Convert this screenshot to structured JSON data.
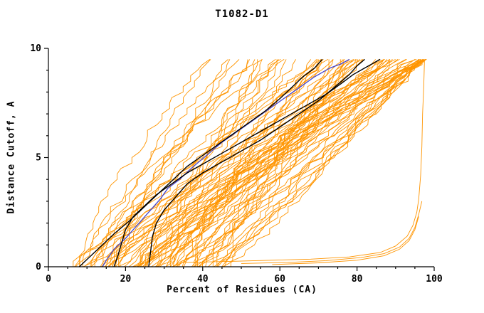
{
  "chart_data": {
    "type": "line",
    "title": "T1082-D1",
    "xlabel": "Percent of Residues (CA)",
    "ylabel": "Distance Cutoff, A",
    "xlim": [
      0,
      100
    ],
    "ylim": [
      0,
      10
    ],
    "x_ticks": [
      0,
      20,
      40,
      60,
      80,
      100
    ],
    "y_ticks": [
      0,
      5,
      10
    ],
    "x_minor_step": 5,
    "y_minor_step": 1,
    "grid": false,
    "legend": "none",
    "axis_color": "#000000",
    "background_color": "#ffffff",
    "ensemble": {
      "description": "cloud of orange model GDT curves (percent of CA residues under each distance cutoff)",
      "color": "#FF9500",
      "count": 85,
      "seed": 20231082,
      "y_max": 9.5,
      "y_step": 0.25,
      "x_start_range": [
        5,
        47
      ],
      "x_end_max": 97
    },
    "series": [
      {
        "name": "outlier-orange-1",
        "color": "#FF9500",
        "width": 0.9,
        "points": [
          [
            35,
            0.2
          ],
          [
            48,
            0.25
          ],
          [
            58,
            0.3
          ],
          [
            68,
            0.35
          ],
          [
            78,
            0.45
          ],
          [
            86,
            0.65
          ],
          [
            90,
            0.95
          ],
          [
            93,
            1.4
          ],
          [
            94.5,
            1.9
          ],
          [
            95.5,
            2.5
          ],
          [
            96,
            3.1
          ],
          [
            96.5,
            4.2
          ],
          [
            96.8,
            5.5
          ],
          [
            97,
            7.0
          ],
          [
            97.3,
            8.3
          ],
          [
            97.5,
            9.5
          ]
        ]
      },
      {
        "name": "outlier-orange-2",
        "color": "#FF9500",
        "width": 0.9,
        "points": [
          [
            50,
            0.15
          ],
          [
            62,
            0.2
          ],
          [
            72,
            0.28
          ],
          [
            81,
            0.42
          ],
          [
            87,
            0.6
          ],
          [
            91,
            0.9
          ],
          [
            93.5,
            1.3
          ],
          [
            95,
            1.8
          ],
          [
            96,
            2.4
          ],
          [
            96.8,
            3.0
          ]
        ]
      },
      {
        "name": "outlier-orange-3",
        "color": "#FF9500",
        "width": 0.9,
        "points": [
          [
            58,
            0.1
          ],
          [
            70,
            0.18
          ],
          [
            80,
            0.3
          ],
          [
            87,
            0.5
          ],
          [
            91,
            0.8
          ],
          [
            93.5,
            1.2
          ],
          [
            95,
            1.7
          ],
          [
            96,
            2.3
          ]
        ]
      },
      {
        "name": "model-blue",
        "color": "#4444CC",
        "width": 1.3,
        "points": [
          [
            14,
            0
          ],
          [
            15,
            0.3
          ],
          [
            17,
            0.8
          ],
          [
            20,
            1.3
          ],
          [
            23,
            1.9
          ],
          [
            26,
            2.5
          ],
          [
            29,
            3.1
          ],
          [
            31,
            3.6
          ],
          [
            34,
            4.0
          ],
          [
            37,
            4.5
          ],
          [
            41,
            5.1
          ],
          [
            45,
            5.7
          ],
          [
            49,
            6.2
          ],
          [
            53,
            6.7
          ],
          [
            57,
            7.2
          ],
          [
            61,
            7.7
          ],
          [
            65,
            8.2
          ],
          [
            69,
            8.7
          ],
          [
            73,
            9.1
          ],
          [
            76,
            9.3
          ],
          [
            78,
            9.5
          ]
        ]
      },
      {
        "name": "model-black-1",
        "color": "#000000",
        "width": 1.4,
        "points": [
          [
            8,
            0
          ],
          [
            11,
            0.5
          ],
          [
            14,
            1.0
          ],
          [
            17,
            1.5
          ],
          [
            21,
            2.1
          ],
          [
            24,
            2.6
          ],
          [
            27,
            3.1
          ],
          [
            30,
            3.6
          ],
          [
            33,
            4.1
          ],
          [
            36,
            4.6
          ],
          [
            40,
            5.1
          ],
          [
            44,
            5.6
          ],
          [
            48,
            6.1
          ],
          [
            52,
            6.6
          ],
          [
            56,
            7.1
          ],
          [
            60,
            7.7
          ],
          [
            63,
            8.2
          ],
          [
            66,
            8.7
          ],
          [
            69,
            9.1
          ],
          [
            71,
            9.5
          ]
        ]
      },
      {
        "name": "model-black-2",
        "color": "#000000",
        "width": 1.4,
        "points": [
          [
            17,
            0
          ],
          [
            18,
            0.5
          ],
          [
            19,
            1.1
          ],
          [
            20,
            1.7
          ],
          [
            22,
            2.3
          ],
          [
            25,
            2.8
          ],
          [
            28,
            3.3
          ],
          [
            32,
            3.8
          ],
          [
            36,
            4.3
          ],
          [
            41,
            4.8
          ],
          [
            46,
            5.3
          ],
          [
            52,
            5.9
          ],
          [
            57,
            6.4
          ],
          [
            62,
            6.9
          ],
          [
            67,
            7.4
          ],
          [
            72,
            7.9
          ],
          [
            76,
            8.4
          ],
          [
            79,
            8.8
          ],
          [
            82,
            9.1
          ],
          [
            84,
            9.3
          ],
          [
            86,
            9.5
          ]
        ]
      },
      {
        "name": "model-black-3",
        "color": "#000000",
        "width": 1.4,
        "points": [
          [
            26,
            0
          ],
          [
            26.5,
            0.7
          ],
          [
            27,
            1.4
          ],
          [
            28,
            2.0
          ],
          [
            30,
            2.6
          ],
          [
            33,
            3.2
          ],
          [
            36,
            3.8
          ],
          [
            40,
            4.3
          ],
          [
            45,
            4.8
          ],
          [
            50,
            5.3
          ],
          [
            55,
            5.8
          ],
          [
            60,
            6.4
          ],
          [
            65,
            7.0
          ],
          [
            70,
            7.6
          ],
          [
            74,
            8.2
          ],
          [
            78,
            8.8
          ],
          [
            80,
            9.2
          ],
          [
            82,
            9.5
          ]
        ]
      }
    ]
  }
}
